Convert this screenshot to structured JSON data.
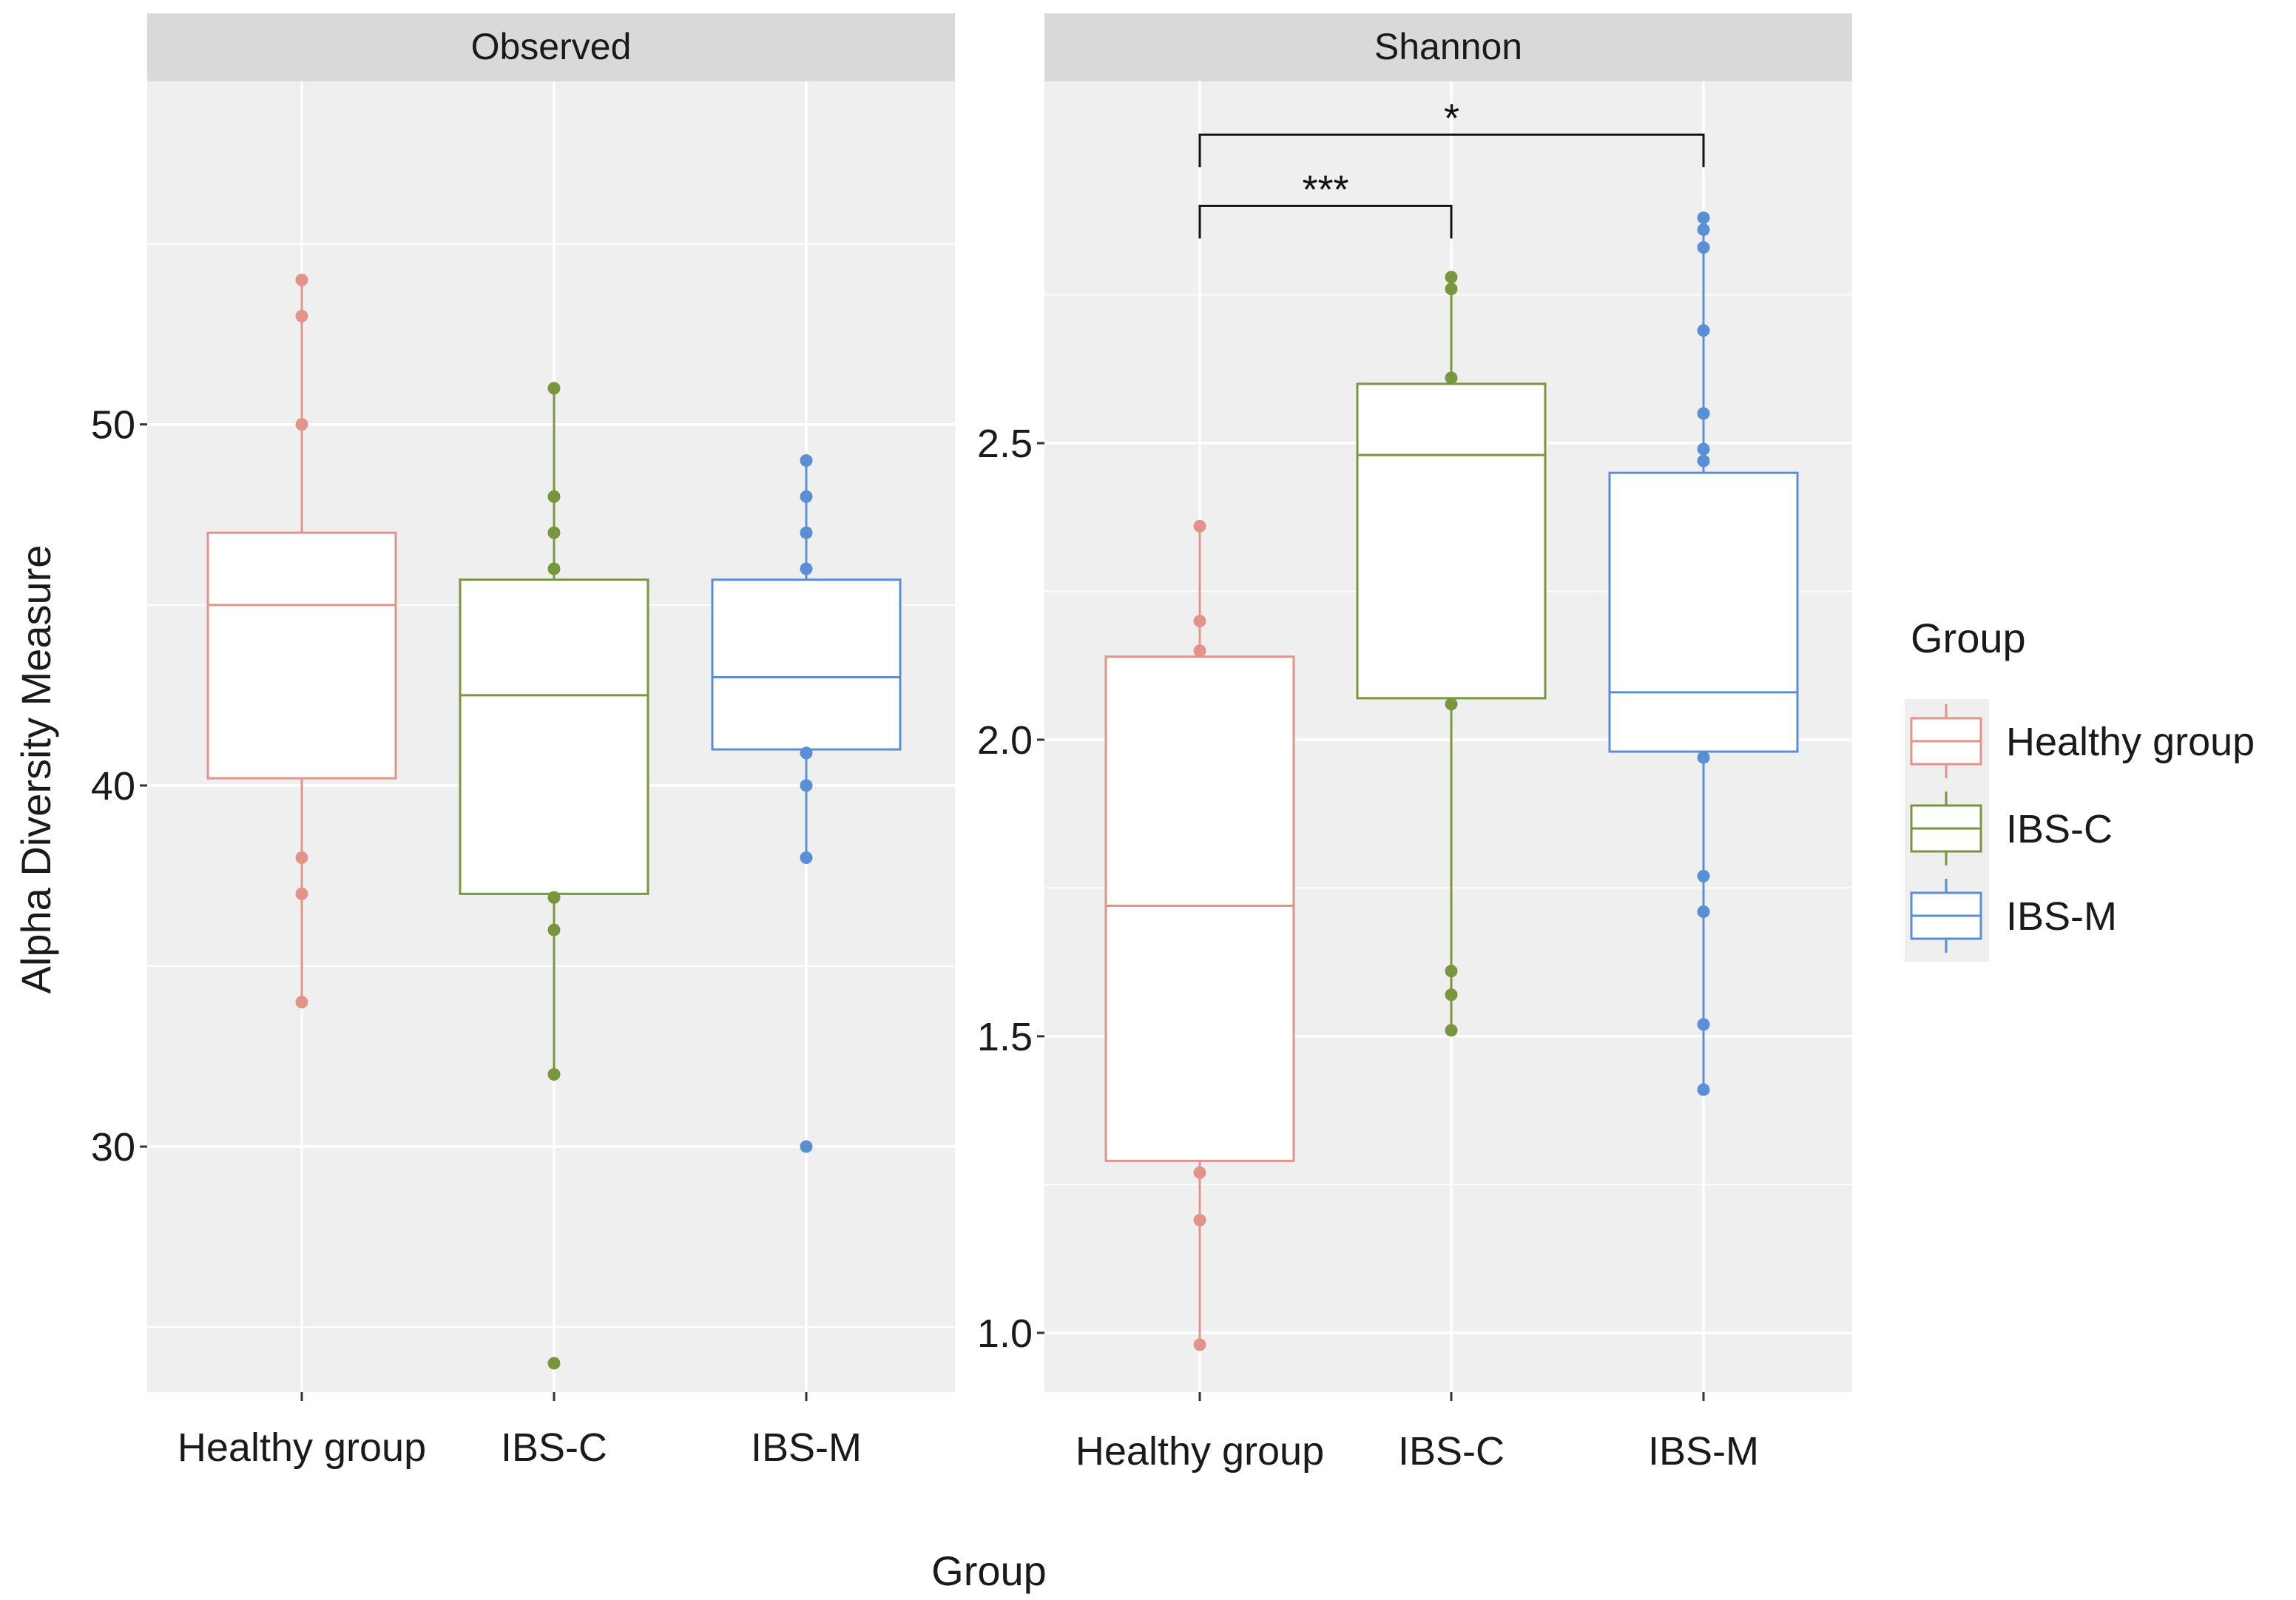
{
  "chart_data": {
    "type": "box",
    "title": "",
    "xlabel": "Group",
    "ylabel": "Alpha Diversity Measure",
    "categories": [
      "Healthy group",
      "IBS-C",
      "IBS-M"
    ],
    "colors": {
      "Healthy group": "#e2938a",
      "IBS-C": "#78963e",
      "IBS-M": "#5a8fd6"
    },
    "legend": {
      "title": "Group",
      "placement": "right",
      "entries": [
        "Healthy group",
        "IBS-C",
        "IBS-M"
      ]
    },
    "facets": [
      {
        "name": "Observed",
        "ylim": [
          23.2,
          59.5
        ],
        "yticks": [
          30,
          40,
          50
        ],
        "tick_labels": [
          "30",
          "40",
          "50"
        ],
        "boxes": [
          {
            "group": "Healthy group",
            "lower": 40.2,
            "q1": 40.2,
            "median": 45.0,
            "q3": 47.0,
            "upper": 47.0,
            "whisker_low": 34,
            "whisker_high": 54,
            "points": [
              54,
              53,
              50,
              38,
              37,
              34
            ]
          },
          {
            "group": "IBS-C",
            "lower": 37.0,
            "q1": 37.0,
            "median": 42.5,
            "q3": 45.7,
            "upper": 45.7,
            "whisker_low": 32,
            "whisker_high": 51,
            "points": [
              51,
              48,
              47,
              46,
              36.9,
              36,
              32,
              24
            ]
          },
          {
            "group": "IBS-M",
            "lower": 41.0,
            "q1": 41.0,
            "median": 43.0,
            "q3": 45.7,
            "upper": 45.7,
            "whisker_low": 38,
            "whisker_high": 49,
            "points": [
              49,
              48,
              47,
              46,
              40.9,
              40,
              38,
              30
            ]
          }
        ],
        "significance": []
      },
      {
        "name": "Shannon",
        "ylim": [
          0.9,
          3.11
        ],
        "yticks": [
          1.0,
          1.5,
          2.0,
          2.5
        ],
        "tick_labels": [
          "1.0",
          "1.5",
          "2.0",
          "2.5"
        ],
        "boxes": [
          {
            "group": "Healthy group",
            "q1": 1.29,
            "median": 1.72,
            "q3": 2.14,
            "whisker_low": 0.98,
            "whisker_high": 2.36,
            "points": [
              2.36,
              2.2,
              2.15,
              1.27,
              1.19,
              0.98
            ]
          },
          {
            "group": "IBS-C",
            "q1": 2.07,
            "median": 2.48,
            "q3": 2.6,
            "whisker_low": 1.51,
            "whisker_high": 2.78,
            "points": [
              2.78,
              2.76,
              2.61,
              2.06,
              1.61,
              1.57,
              1.51
            ]
          },
          {
            "group": "IBS-M",
            "q1": 1.98,
            "median": 2.08,
            "q3": 2.45,
            "whisker_low": 1.41,
            "whisker_high": 2.88,
            "points": [
              2.88,
              2.86,
              2.83,
              2.69,
              2.55,
              2.49,
              2.47,
              1.97,
              1.77,
              1.71,
              1.52,
              1.41
            ]
          }
        ],
        "significance": [
          {
            "from": "Healthy group",
            "to": "IBS-C",
            "label": "***",
            "y": 2.9
          },
          {
            "from": "Healthy group",
            "to": "IBS-M",
            "label": "*",
            "y": 3.02
          }
        ]
      }
    ]
  }
}
